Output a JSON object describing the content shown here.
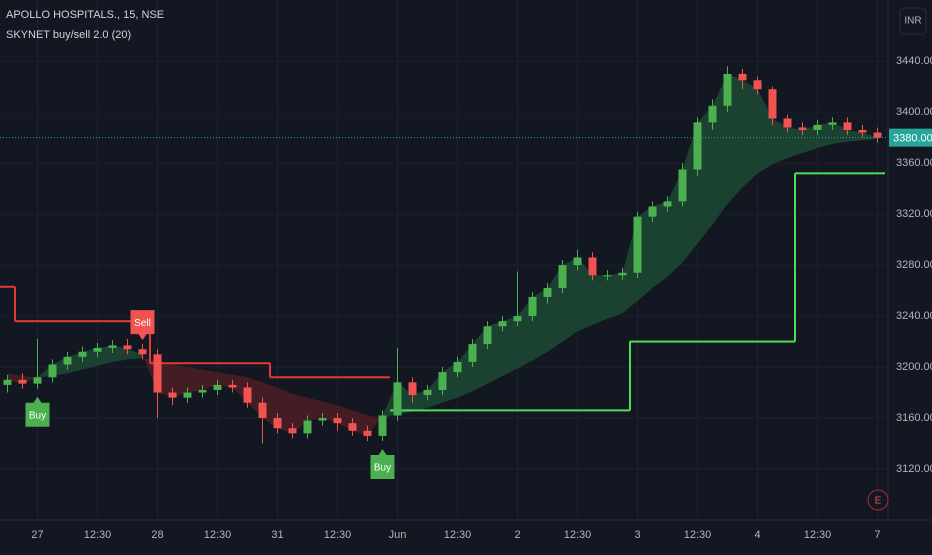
{
  "chart_data": {
    "type": "candlestick",
    "title": "APOLLO HOSPITALS., 15, NSE",
    "subtitle": "SKYNET buy/sell 2.0 (20)",
    "currency": "INR",
    "badge": "E",
    "categories": [
      null,
      null,
      "27",
      null,
      null,
      null,
      "12:30",
      null,
      null,
      null,
      "28",
      null,
      null,
      null,
      "12:30",
      null,
      null,
      null,
      "31",
      null,
      null,
      null,
      "12:30",
      null,
      null,
      null,
      "Jun",
      null,
      null,
      null,
      "12:30",
      null,
      null,
      null,
      "2",
      null,
      null,
      null,
      "12:30",
      null,
      null,
      null,
      "3",
      null,
      null,
      null,
      "12:30",
      null,
      null,
      null,
      "4",
      null,
      null,
      null,
      "12:30",
      null,
      null,
      null,
      "7"
    ],
    "open": [
      3186,
      3190,
      3187,
      3192,
      3202,
      3208,
      3212,
      3215,
      3217,
      3214,
      3210,
      3180,
      3176,
      3180,
      3182,
      3186,
      3184,
      3172,
      3160,
      3152,
      3148,
      3158,
      3160,
      3156,
      3150,
      3146,
      3162,
      3188,
      3178,
      3182,
      3196,
      3204,
      3218,
      3232,
      3236,
      3240,
      3255,
      3262,
      3280,
      3286,
      3272,
      3272,
      3274,
      3318,
      3326,
      3330,
      3355,
      3392,
      3405,
      3430,
      3425,
      3418,
      3395,
      3388,
      3386,
      3390,
      3392,
      3386,
      3384
    ],
    "high": [
      3194,
      3195,
      3222,
      3206,
      3212,
      3216,
      3219,
      3221,
      3222,
      3218,
      3214,
      3184,
      3184,
      3186,
      3190,
      3190,
      3188,
      3176,
      3164,
      3156,
      3162,
      3164,
      3164,
      3160,
      3154,
      3166,
      3215,
      3192,
      3186,
      3200,
      3208,
      3222,
      3236,
      3240,
      3275,
      3259,
      3266,
      3284,
      3292,
      3290,
      3276,
      3278,
      3322,
      3330,
      3334,
      3360,
      3396,
      3410,
      3436,
      3434,
      3428,
      3420,
      3398,
      3392,
      3394,
      3396,
      3396,
      3390,
      3388
    ],
    "low": [
      3180,
      3183,
      3183,
      3188,
      3198,
      3204,
      3208,
      3211,
      3210,
      3206,
      3160,
      3170,
      3172,
      3176,
      3178,
      3180,
      3168,
      3140,
      3148,
      3144,
      3144,
      3154,
      3150,
      3146,
      3142,
      3142,
      3158,
      3172,
      3174,
      3178,
      3192,
      3200,
      3214,
      3228,
      3232,
      3236,
      3250,
      3258,
      3276,
      3268,
      3268,
      3268,
      3270,
      3314,
      3322,
      3326,
      3350,
      3386,
      3400,
      3418,
      3414,
      3390,
      3384,
      3382,
      3382,
      3386,
      3382,
      3380,
      3376
    ],
    "close": [
      3190,
      3187,
      3192,
      3202,
      3208,
      3212,
      3215,
      3217,
      3214,
      3210,
      3180,
      3176,
      3180,
      3182,
      3186,
      3184,
      3172,
      3160,
      3152,
      3148,
      3158,
      3160,
      3156,
      3150,
      3146,
      3162,
      3188,
      3178,
      3182,
      3196,
      3204,
      3218,
      3232,
      3236,
      3240,
      3255,
      3262,
      3280,
      3286,
      3272,
      3272,
      3274,
      3318,
      3326,
      3330,
      3355,
      3392,
      3405,
      3430,
      3425,
      3418,
      3395,
      3388,
      3386,
      3390,
      3392,
      3386,
      3384,
      3380
    ],
    "ma": [
      3195,
      3193,
      3192,
      3193,
      3195,
      3198,
      3201,
      3204,
      3206,
      3207,
      3205,
      3202,
      3200,
      3198,
      3196,
      3194,
      3192,
      3188,
      3184,
      3179,
      3176,
      3173,
      3170,
      3166,
      3162,
      3160,
      3163,
      3165,
      3168,
      3172,
      3176,
      3181,
      3187,
      3193,
      3199,
      3205,
      3212,
      3220,
      3228,
      3233,
      3238,
      3242,
      3252,
      3262,
      3271,
      3282,
      3297,
      3312,
      3328,
      3341,
      3352,
      3359,
      3364,
      3368,
      3372,
      3375,
      3377,
      3378,
      3379
    ],
    "stop_sell": [
      3263,
      3236,
      3236,
      3236,
      3236,
      3236,
      3236,
      3236,
      3236,
      3236,
      3203,
      3203,
      3203,
      3203,
      3203,
      3203,
      3203,
      3203,
      3192,
      3192,
      3192,
      3192,
      3192,
      3192,
      3192,
      3192,
      null,
      null,
      null,
      null,
      null,
      null,
      null,
      null,
      null,
      null,
      null,
      null,
      null,
      null,
      null,
      null,
      null,
      null,
      null,
      null,
      null,
      null,
      null,
      null,
      null,
      null,
      null,
      null,
      null,
      null,
      null,
      null,
      null
    ],
    "stop_buy": [
      null,
      null,
      null,
      null,
      null,
      null,
      null,
      null,
      null,
      null,
      null,
      null,
      null,
      null,
      null,
      null,
      null,
      null,
      null,
      null,
      null,
      null,
      null,
      null,
      null,
      null,
      3166,
      3166,
      3166,
      3166,
      3166,
      3166,
      3166,
      3166,
      3166,
      3166,
      3166,
      3166,
      3166,
      3166,
      3166,
      3166,
      3220,
      3220,
      3220,
      3220,
      3220,
      3220,
      3220,
      3220,
      3220,
      3220,
      3220,
      3352,
      3352,
      3352,
      3352,
      3352,
      3352
    ],
    "annotations": [
      {
        "text": "Buy",
        "at": 2,
        "side": "below"
      },
      {
        "text": "Sell",
        "at": 9,
        "side": "above"
      },
      {
        "text": "Buy",
        "at": 25,
        "side": "below"
      }
    ],
    "last_price": {
      "value": 3380,
      "label": "3380.00"
    },
    "up_color": "#4caf50",
    "down_color": "#f05350",
    "fill_up_color": "#1d4a33",
    "fill_down_color": "#4e1d24",
    "stop_sell_color": "#e53935",
    "stop_buy_color": "#4cde5a",
    "buy_color": "#4caf50",
    "sell_color": "#f05350",
    "last_price_color": "#26a69a",
    "ylim": [
      3080,
      3488
    ],
    "yticks": [
      {
        "value": 3120,
        "label": "3120.00"
      },
      {
        "value": 3160,
        "label": "3160.00"
      },
      {
        "value": 3200,
        "label": "3200.00"
      },
      {
        "value": 3240,
        "label": "3240.00"
      },
      {
        "value": 3280,
        "label": "3280.00"
      },
      {
        "value": 3320,
        "label": "3320.00"
      },
      {
        "value": 3360,
        "label": "3360.00"
      },
      {
        "value": 3400,
        "label": "3400.00"
      },
      {
        "value": 3440,
        "label": "3440.00"
      }
    ],
    "grid": true
  }
}
